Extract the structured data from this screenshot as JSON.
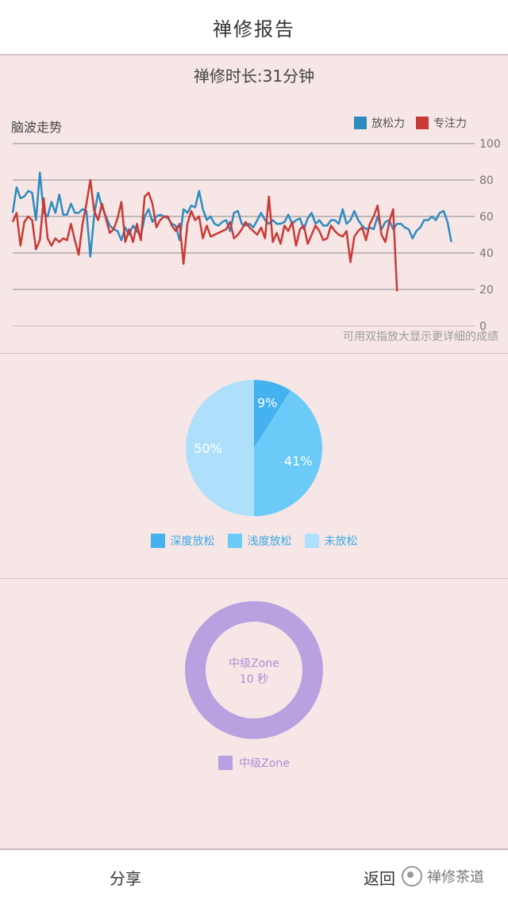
{
  "header": {
    "title": "禅修报告"
  },
  "session": {
    "duration_text": "禅修时长:31分钟"
  },
  "brainwave": {
    "section_title": "脑波走势",
    "hint": "可用双指放大显示更详细的成绩",
    "colors": {
      "relax": "#2e8bc0",
      "focus": "#c93a36"
    }
  },
  "relax_pie": {
    "colors": [
      "#43b2ef",
      "#6ccaf8",
      "#aee0fb"
    ]
  },
  "zone_donut": {
    "center_label": "中级Zone",
    "center_value": "10 秒",
    "legend_label": "中级Zone",
    "color": "#b9a0e0"
  },
  "footer": {
    "share_label": "分享",
    "back_label": "返回",
    "watermark_text": "禅修茶道"
  },
  "chart_data": [
    {
      "type": "line",
      "x": [
        1,
        2,
        3,
        4,
        5,
        6,
        7,
        8,
        9,
        10,
        11,
        12,
        13,
        14,
        15,
        16,
        17,
        18,
        19,
        20,
        21,
        22,
        23,
        24,
        25,
        26,
        27,
        28,
        29,
        30,
        31,
        32,
        33,
        34,
        35,
        36,
        37,
        38,
        39,
        40,
        41,
        42,
        43,
        44,
        45,
        46,
        47,
        48,
        49,
        50,
        51,
        52,
        53,
        54,
        55,
        56,
        57,
        58,
        59,
        60,
        61,
        62,
        63,
        64,
        65,
        66,
        67,
        68,
        69,
        70,
        71,
        72,
        73,
        74,
        75,
        76,
        77,
        78,
        79,
        80,
        81,
        82,
        83,
        84,
        85,
        86,
        87,
        88,
        89,
        90,
        91,
        92,
        93,
        94,
        95,
        96,
        97,
        98,
        99,
        100,
        101,
        102,
        103,
        104,
        105,
        106,
        107,
        108,
        109,
        110,
        111,
        112,
        113,
        114,
        115,
        116,
        117,
        118,
        119,
        120
      ],
      "series": [
        {
          "name": "放松力",
          "values": [
            62,
            76,
            70,
            71,
            74,
            73,
            58,
            84,
            62,
            60,
            68,
            62,
            72,
            61,
            61,
            67,
            62,
            62,
            64,
            63,
            38,
            61,
            73,
            65,
            60,
            55,
            53,
            52,
            47,
            54,
            50,
            55,
            52,
            49,
            60,
            64,
            57,
            60,
            61,
            60,
            59,
            56,
            55,
            47,
            64,
            62,
            66,
            65,
            74,
            64,
            58,
            60,
            56,
            55,
            57,
            58,
            52,
            62,
            63,
            56,
            55,
            56,
            54,
            58,
            62,
            58,
            56,
            58,
            56,
            56,
            57,
            61,
            56,
            58,
            59,
            53,
            59,
            62,
            56,
            58,
            55,
            55,
            58,
            58,
            56,
            64,
            56,
            58,
            63,
            58,
            55,
            53,
            54,
            53,
            60,
            53,
            57,
            58,
            53,
            56,
            56,
            54,
            53,
            48,
            52,
            54,
            58,
            58,
            60,
            58,
            62,
            63,
            57,
            46,
            0,
            0,
            0,
            0,
            0,
            0
          ]
        },
        {
          "name": "专注力",
          "values": [
            57,
            62,
            44,
            57,
            60,
            58,
            42,
            47,
            70,
            48,
            44,
            48,
            46,
            48,
            47,
            56,
            47,
            39,
            56,
            67,
            80,
            63,
            58,
            67,
            59,
            51,
            53,
            59,
            68,
            46,
            53,
            46,
            56,
            47,
            71,
            73,
            67,
            54,
            58,
            60,
            60,
            55,
            52,
            56,
            34,
            56,
            63,
            58,
            60,
            48,
            55,
            49,
            50,
            51,
            52,
            53,
            57,
            48,
            50,
            53,
            57,
            54,
            52,
            50,
            54,
            48,
            71,
            46,
            51,
            45,
            55,
            52,
            57,
            44,
            53,
            55,
            45,
            50,
            55,
            52,
            47,
            48,
            55,
            52,
            50,
            49,
            52,
            35,
            49,
            52,
            54,
            47,
            56,
            60,
            66,
            50,
            46,
            57,
            64,
            19,
            0,
            0,
            0,
            0,
            0,
            0,
            0,
            0,
            0,
            0,
            0,
            0,
            0,
            0,
            0,
            0,
            0,
            0,
            0,
            0
          ]
        }
      ],
      "ylim": [
        0,
        100
      ],
      "yticks": [
        0,
        20,
        40,
        60,
        80,
        100
      ],
      "legend": [
        "放松力",
        "专注力"
      ],
      "legend_position": "top-right",
      "grid": true
    },
    {
      "type": "pie",
      "labels": [
        "深度放松",
        "浅度放松",
        "未放松"
      ],
      "values": [
        9,
        41,
        50
      ],
      "value_labels": [
        "9%",
        "41%",
        "50%"
      ],
      "legend_position": "bottom"
    },
    {
      "type": "pie",
      "labels": [
        "中级Zone"
      ],
      "values": [
        100
      ],
      "donut": true,
      "legend_position": "bottom"
    }
  ]
}
